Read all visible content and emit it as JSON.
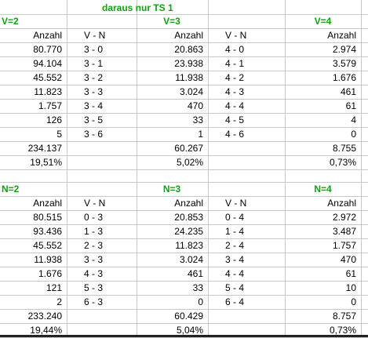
{
  "title": "daraus nur TS 1",
  "blocks": [
    {
      "left_title": "V=2",
      "middle_title": "V=3",
      "right_title": "V=4",
      "col_headers": [
        "Anzahl",
        "V - N",
        "Anzahl",
        "V - N",
        "Anzahl"
      ],
      "rows": [
        [
          "80.770",
          "3 - 0",
          "20.863",
          "4 - 0",
          "2.974"
        ],
        [
          "94.104",
          "3 - 1",
          "23.938",
          "4 - 1",
          "3.579"
        ],
        [
          "45.552",
          "3 - 2",
          "11.938",
          "4 - 2",
          "1.676"
        ],
        [
          "11.823",
          "3 - 3",
          "3.024",
          "4 - 3",
          "461"
        ],
        [
          "1.757",
          "3 - 4",
          "470",
          "4 - 4",
          "61"
        ],
        [
          "126",
          "3 - 5",
          "33",
          "4 - 5",
          "4"
        ],
        [
          "5",
          "3 - 6",
          "1",
          "4 - 6",
          "0"
        ]
      ],
      "totals": [
        "234.137",
        "",
        "60.267",
        "",
        "8.755"
      ],
      "percents": [
        "19,51%",
        "",
        "5,02%",
        "",
        "0,73%"
      ]
    },
    {
      "left_title": "N=2",
      "middle_title": "N=3",
      "right_title": "N=4",
      "col_headers": [
        "Anzahl",
        "V - N",
        "Anzahl",
        "V - N",
        "Anzahl"
      ],
      "rows": [
        [
          "80.515",
          "0 - 3",
          "20.853",
          "0 - 4",
          "2.972"
        ],
        [
          "93.436",
          "1 - 3",
          "24.235",
          "1 - 4",
          "3.487"
        ],
        [
          "45.552",
          "2 - 3",
          "11.823",
          "2 - 4",
          "1.757"
        ],
        [
          "11.938",
          "3 - 3",
          "3.024",
          "3 - 4",
          "470"
        ],
        [
          "1.676",
          "4 - 3",
          "461",
          "4 - 4",
          "61"
        ],
        [
          "121",
          "5 - 3",
          "33",
          "5 - 4",
          "10"
        ],
        [
          "2",
          "6 - 3",
          "0",
          "6 - 4",
          "0"
        ]
      ],
      "totals": [
        "233.240",
        "",
        "60.429",
        "",
        "8.757"
      ],
      "percents": [
        "19,44%",
        "",
        "5,04%",
        "",
        "0,73%"
      ]
    }
  ]
}
